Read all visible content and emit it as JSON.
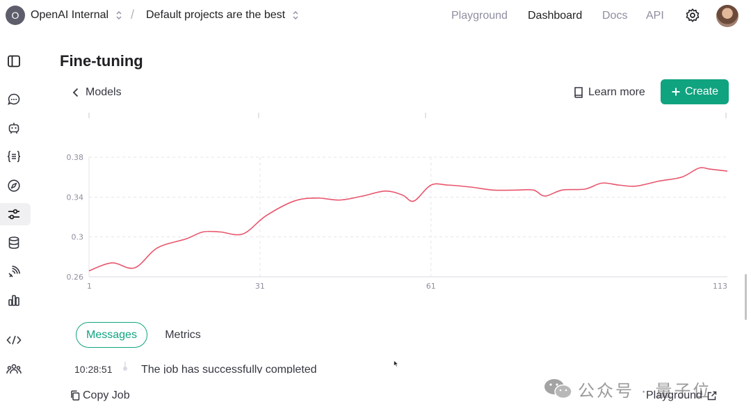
{
  "topbar": {
    "org_initial": "O",
    "org_name": "OpenAI Internal",
    "separator": "/",
    "project_name": "Default projects are the best",
    "nav": {
      "playground": "Playground",
      "dashboard": "Dashboard",
      "docs": "Docs",
      "api": "API"
    },
    "active_nav": "dashboard"
  },
  "sidebar": {
    "items": [
      {
        "icon": "sidebar-toggle-icon"
      },
      {
        "icon": "chat-icon"
      },
      {
        "icon": "assistant-robot-icon"
      },
      {
        "icon": "braces-icon"
      },
      {
        "icon": "compass-icon"
      },
      {
        "icon": "sliders-icon",
        "active": true
      },
      {
        "icon": "database-icon"
      },
      {
        "icon": "audio-icon"
      },
      {
        "icon": "bar-chart-icon"
      },
      {
        "icon": "code-icon"
      },
      {
        "icon": "team-icon"
      },
      {
        "icon": "help-icon"
      }
    ]
  },
  "page": {
    "title": "Fine-tuning",
    "back_label": "Models",
    "learn_more_label": "Learn more",
    "create_label": "Create",
    "accent_color": "#10a37f"
  },
  "chart_data": {
    "type": "line",
    "title": "",
    "xlabel": "",
    "ylabel": "",
    "x_ticks": [
      "1",
      "31",
      "61",
      "113"
    ],
    "y_ticks": [
      "0.38",
      "0.34",
      "0.3",
      "0.26"
    ],
    "ylim": [
      0.26,
      0.38
    ],
    "xlim": [
      1,
      113
    ],
    "grid": true,
    "line_color": "#e8556d",
    "series": [
      {
        "x": [
          1,
          5,
          9,
          13,
          18,
          21,
          24,
          28,
          32,
          37,
          41,
          45,
          49,
          53,
          56,
          58,
          61,
          64,
          68,
          72,
          76,
          79,
          81,
          84,
          88,
          91,
          94,
          97,
          101,
          105,
          108,
          110,
          113
        ],
        "y": [
          0.266,
          0.274,
          0.269,
          0.289,
          0.298,
          0.305,
          0.305,
          0.303,
          0.321,
          0.336,
          0.339,
          0.337,
          0.341,
          0.346,
          0.342,
          0.336,
          0.352,
          0.352,
          0.35,
          0.347,
          0.347,
          0.347,
          0.341,
          0.347,
          0.348,
          0.354,
          0.352,
          0.351,
          0.356,
          0.36,
          0.369,
          0.368,
          0.366
        ]
      }
    ]
  },
  "tabs": {
    "messages": "Messages",
    "metrics": "Metrics",
    "active": "messages"
  },
  "log": {
    "time": "10:28:51",
    "message": "The job has successfully completed"
  },
  "footer": {
    "copy_job": "Copy Job",
    "playground": "Playground",
    "watermark": "公众号 · 量子位"
  }
}
